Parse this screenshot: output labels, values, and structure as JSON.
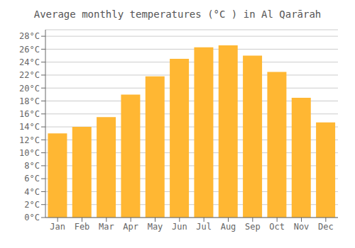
{
  "chart_data": {
    "type": "bar",
    "title": "Average monthly temperatures (°C ) in Al Qarārah",
    "categories": [
      "Jan",
      "Feb",
      "Mar",
      "Apr",
      "May",
      "Jun",
      "Jul",
      "Aug",
      "Sep",
      "Oct",
      "Nov",
      "Dec"
    ],
    "values": [
      13,
      14,
      15.5,
      19,
      21.8,
      24.5,
      26.3,
      26.6,
      25,
      22.5,
      18.5,
      14.7
    ],
    "color": "#FFB733",
    "ylim": [
      0,
      29
    ],
    "yticks": [
      {
        "value": 0,
        "label": "0°C"
      },
      {
        "value": 2,
        "label": "2°C"
      },
      {
        "value": 4,
        "label": "4°C"
      },
      {
        "value": 6,
        "label": "6°C"
      },
      {
        "value": 8,
        "label": "8°C"
      },
      {
        "value": 10,
        "label": "10°C"
      },
      {
        "value": 12,
        "label": "12°C"
      },
      {
        "value": 14,
        "label": "14°C"
      },
      {
        "value": 16,
        "label": "16°C"
      },
      {
        "value": 18,
        "label": "18°C"
      },
      {
        "value": 20,
        "label": "20°C"
      },
      {
        "value": 22,
        "label": "22°C"
      },
      {
        "value": 24,
        "label": "24°C"
      },
      {
        "value": 26,
        "label": "26°C"
      },
      {
        "value": 28,
        "label": "28°C"
      }
    ],
    "grid": true
  }
}
